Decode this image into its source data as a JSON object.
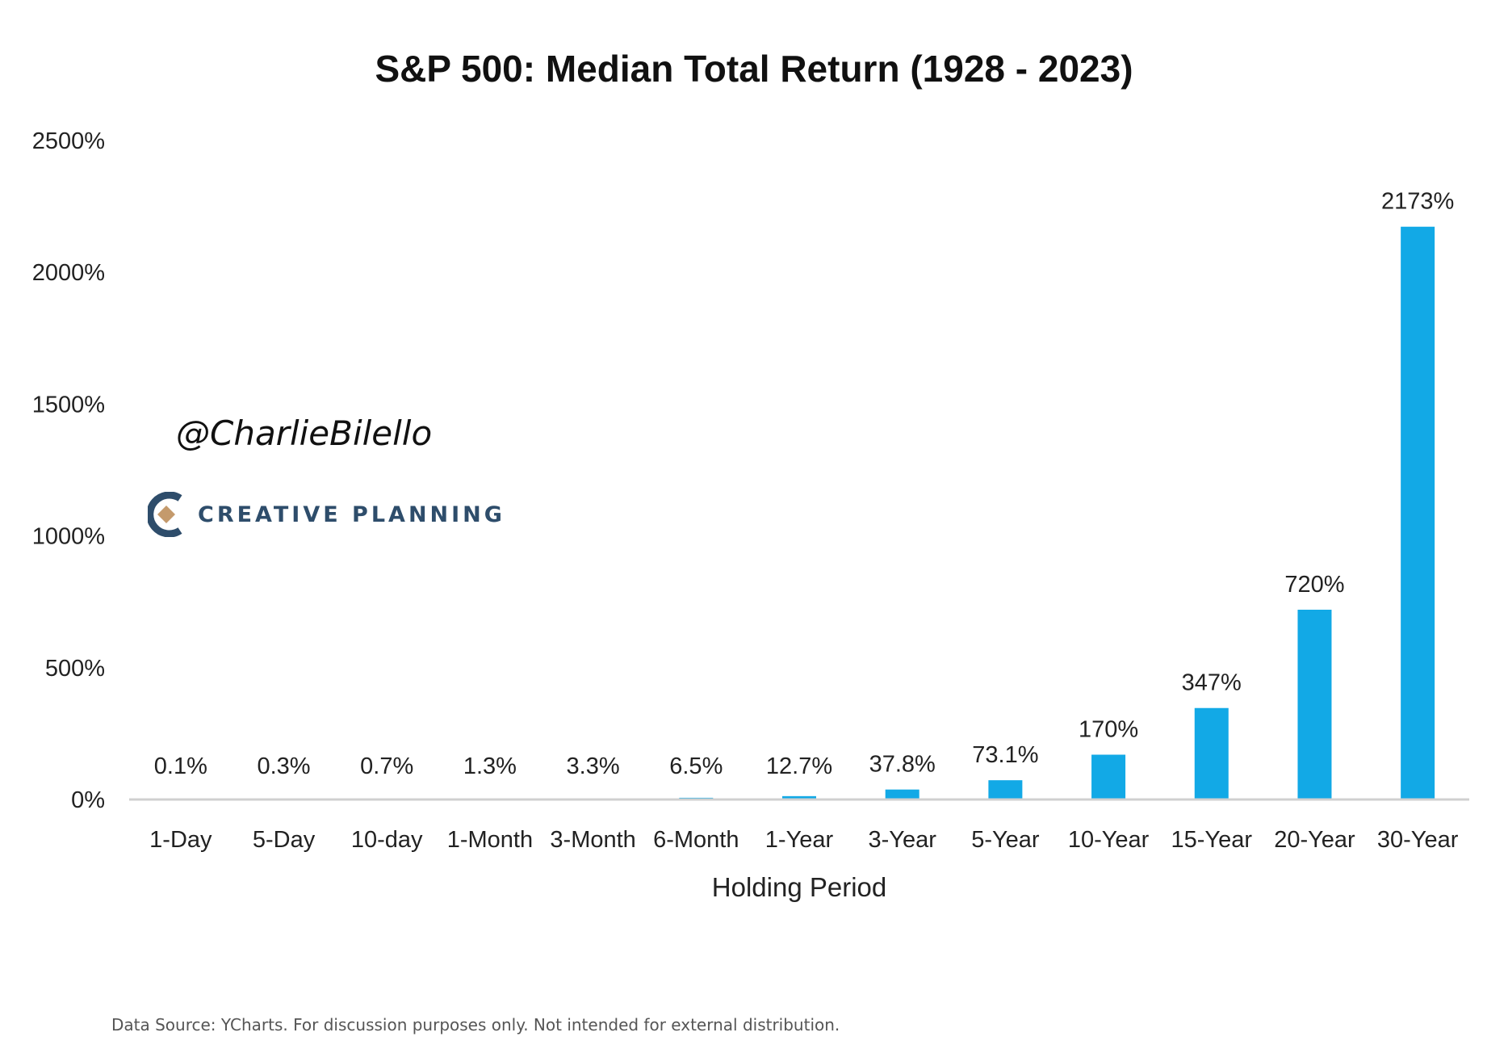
{
  "chart_data": {
    "type": "bar",
    "title": "S&P 500: Median Total Return (1928 - 2023)",
    "xlabel": "Holding Period",
    "ylabel": "",
    "ylim": [
      0,
      2500
    ],
    "yticks": [
      0,
      500,
      1000,
      1500,
      2000,
      2500
    ],
    "ytick_labels": [
      "0%",
      "500%",
      "1000%",
      "1500%",
      "2000%",
      "2500%"
    ],
    "grid": false,
    "legend": "none",
    "bar_color": "#12a9e6",
    "categories": [
      "1-Day",
      "5-Day",
      "10-day",
      "1-Month",
      "3-Month",
      "6-Month",
      "1-Year",
      "3-Year",
      "5-Year",
      "10-Year",
      "15-Year",
      "20-Year",
      "30-Year"
    ],
    "values": [
      0.1,
      0.3,
      0.7,
      1.3,
      3.3,
      6.5,
      12.7,
      37.8,
      73.1,
      170,
      347,
      720,
      2173
    ],
    "data_labels": [
      "0.1%",
      "0.3%",
      "0.7%",
      "1.3%",
      "3.3%",
      "6.5%",
      "12.7%",
      "37.8%",
      "73.1%",
      "170%",
      "347%",
      "720%",
      "2173%"
    ]
  },
  "watermark": {
    "handle": "@CharlieBilello",
    "brand": "CREATIVE PLANNING"
  },
  "footnote": "Data Source: YCharts. For discussion purposes only. Not intended for external distribution."
}
